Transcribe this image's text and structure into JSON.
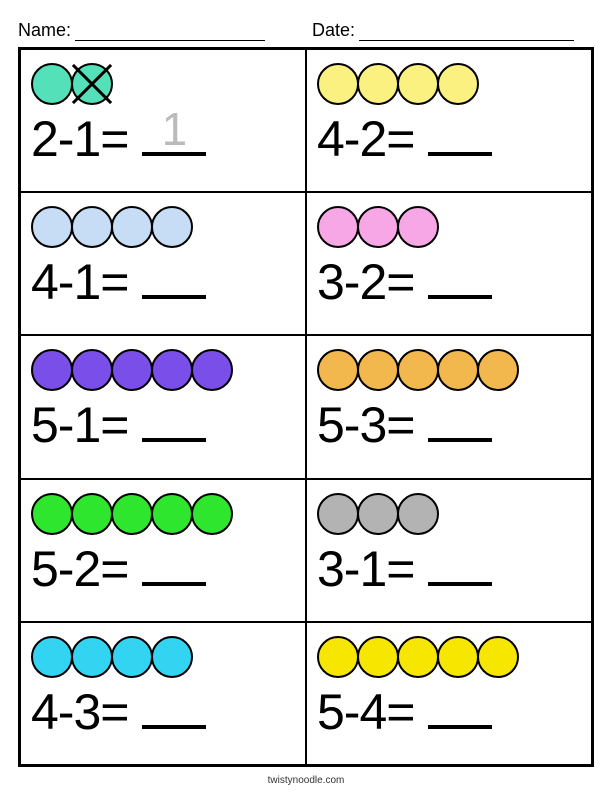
{
  "header": {
    "name_label": "Name:",
    "date_label": "Date:"
  },
  "colors": {
    "stroke": "#000000",
    "background": "#ffffff"
  },
  "problems": [
    {
      "circle_count": 2,
      "circle_color": "#54e0b8",
      "crossed_last": true,
      "equation_text": "2-1=",
      "trace_answer": "1"
    },
    {
      "circle_count": 4,
      "circle_color": "#fbf181",
      "crossed_last": false,
      "equation_text": "4-2=",
      "trace_answer": ""
    },
    {
      "circle_count": 4,
      "circle_color": "#c7ddf5",
      "crossed_last": false,
      "equation_text": "4-1=",
      "trace_answer": ""
    },
    {
      "circle_count": 3,
      "circle_color": "#f7a6e6",
      "crossed_last": false,
      "equation_text": "3-2=",
      "trace_answer": ""
    },
    {
      "circle_count": 5,
      "circle_color": "#7a4ee8",
      "crossed_last": false,
      "equation_text": "5-1=",
      "trace_answer": ""
    },
    {
      "circle_count": 5,
      "circle_color": "#f2b84d",
      "crossed_last": false,
      "equation_text": "5-3=",
      "trace_answer": ""
    },
    {
      "circle_count": 5,
      "circle_color": "#2fe62f",
      "crossed_last": false,
      "equation_text": "5-2=",
      "trace_answer": ""
    },
    {
      "circle_count": 3,
      "circle_color": "#b3b3b3",
      "crossed_last": false,
      "equation_text": "3-1=",
      "trace_answer": ""
    },
    {
      "circle_count": 4,
      "circle_color": "#33d4f2",
      "crossed_last": false,
      "equation_text": "4-3=",
      "trace_answer": ""
    },
    {
      "circle_count": 5,
      "circle_color": "#f7e600",
      "crossed_last": false,
      "equation_text": "5-4=",
      "trace_answer": ""
    }
  ],
  "footer": "twistynoodle.com"
}
